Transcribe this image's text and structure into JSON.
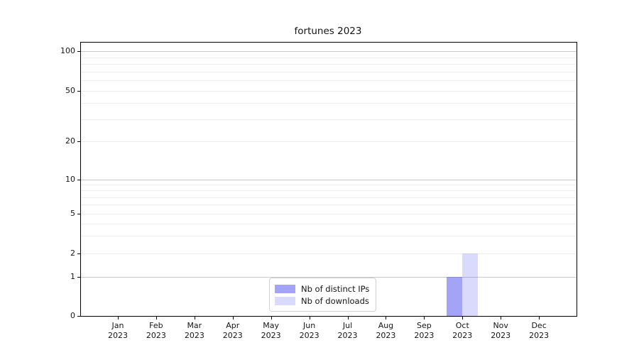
{
  "chart_data": {
    "type": "bar",
    "title": "fortunes 2023",
    "categories": [
      "Jan",
      "Feb",
      "Mar",
      "Apr",
      "May",
      "Jun",
      "Jul",
      "Aug",
      "Sep",
      "Oct",
      "Nov",
      "Dec"
    ],
    "category_year": "2023",
    "series": [
      {
        "name": "Nb of distinct IPs",
        "values": [
          0,
          0,
          0,
          0,
          0,
          0,
          0,
          0,
          0,
          1,
          0,
          0
        ],
        "color": "rgba(80,80,240,0.52)"
      },
      {
        "name": "Nb of downloads",
        "values": [
          0,
          0,
          0,
          0,
          0,
          0,
          0,
          0,
          0,
          2,
          0,
          0
        ],
        "color": "rgba(80,80,240,0.21)"
      }
    ],
    "legend": {
      "position": "lower-center-inside",
      "labels": [
        "Nb of distinct IPs",
        "Nb of downloads"
      ]
    },
    "x_axis": {
      "tick_labels_line1": [
        "Jan",
        "Feb",
        "Mar",
        "Apr",
        "May",
        "Jun",
        "Jul",
        "Aug",
        "Sep",
        "Oct",
        "Nov",
        "Dec"
      ],
      "tick_labels_line2": [
        "2023",
        "2023",
        "2023",
        "2023",
        "2023",
        "2023",
        "2023",
        "2023",
        "2023",
        "2023",
        "2023",
        "2023"
      ]
    },
    "y_axis": {
      "scale": "symlog-like",
      "ylim": [
        0,
        115
      ],
      "ticks": [
        {
          "value": 0,
          "label": "0",
          "pos": 0.0
        },
        {
          "value": 1,
          "label": "1",
          "pos": 0.144
        },
        {
          "value": 2,
          "label": "2",
          "pos": 0.2286
        },
        {
          "value": 5,
          "label": "5",
          "pos": 0.374
        },
        {
          "value": 10,
          "label": "10",
          "pos": 0.4987
        },
        {
          "value": 20,
          "label": "20",
          "pos": 0.639
        },
        {
          "value": 50,
          "label": "50",
          "pos": 0.8234
        },
        {
          "value": 100,
          "label": "100",
          "pos": 0.9688
        }
      ],
      "major_gridline_values": [
        1,
        10,
        100
      ],
      "minor_gridline_values": [
        2,
        3,
        4,
        5,
        6,
        7,
        8,
        9,
        20,
        30,
        40,
        50,
        60,
        70,
        80,
        90
      ]
    },
    "grid": true,
    "colors": {
      "major_grid": "#c9c9c9",
      "minor_grid": "#ededed",
      "axis": "#000000",
      "text": "#151515"
    }
  }
}
